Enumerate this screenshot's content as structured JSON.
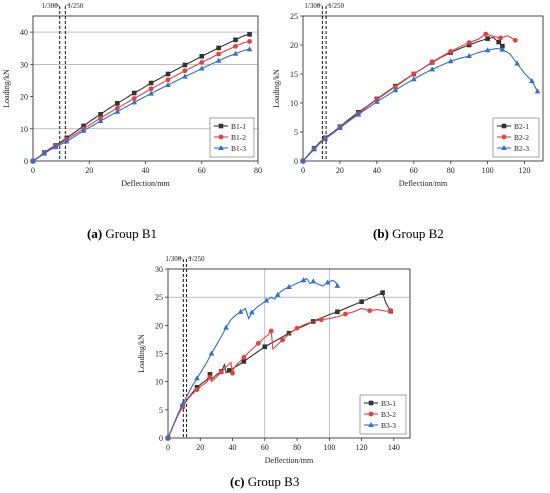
{
  "chart_data": [
    {
      "type": "line",
      "caption": "Group B1",
      "caption_letter": "(a)",
      "xlabel": "Deflection/mm",
      "ylabel": "Loading/kN",
      "xlim": [
        0,
        80
      ],
      "ylim": [
        0,
        45
      ],
      "xticks": [
        0,
        20,
        40,
        60,
        80
      ],
      "yticks": [
        0,
        10,
        20,
        30,
        40
      ],
      "grid_x": [],
      "grid_y": [
        10,
        30,
        40
      ],
      "ref_lines": [
        {
          "x": 9.5,
          "label": "1/300"
        },
        {
          "x": 11.5,
          "label": "1/250"
        }
      ],
      "legend_position": "bottom-right",
      "series": [
        {
          "name": "B1-1",
          "color": "#333333",
          "marker": "square",
          "x": [
            0,
            2,
            4,
            6,
            8,
            10,
            12,
            15,
            18,
            21,
            24,
            27,
            30,
            33,
            36,
            39,
            42,
            45,
            48,
            51,
            54,
            57,
            60,
            63,
            66,
            69,
            72,
            75,
            77
          ],
          "y": [
            0,
            1.2,
            2.6,
            3.8,
            4.8,
            5.9,
            7.2,
            9.0,
            10.9,
            12.8,
            14.5,
            16.3,
            17.9,
            19.5,
            21.1,
            22.6,
            24.2,
            25.6,
            27.0,
            28.4,
            29.8,
            31.1,
            32.5,
            33.8,
            35.1,
            36.4,
            37.6,
            38.9,
            39.3
          ]
        },
        {
          "name": "B1-2",
          "color": "#e8413c",
          "marker": "circle",
          "x": [
            0,
            2,
            4,
            6,
            8,
            10,
            12,
            15,
            18,
            21,
            24,
            27,
            30,
            33,
            36,
            39,
            42,
            45,
            48,
            51,
            54,
            57,
            60,
            63,
            66,
            69,
            72,
            75,
            77
          ],
          "y": [
            0,
            1.1,
            2.4,
            3.6,
            4.6,
            5.6,
            6.7,
            8.3,
            10.0,
            11.7,
            13.3,
            14.9,
            16.4,
            17.9,
            19.4,
            20.9,
            22.4,
            23.8,
            25.2,
            26.6,
            28.0,
            29.3,
            30.6,
            31.9,
            33.2,
            34.4,
            35.6,
            36.7,
            37.1
          ]
        },
        {
          "name": "B1-3",
          "color": "#2d6fd6",
          "marker": "triangle",
          "x": [
            0,
            2,
            4,
            6,
            8,
            10,
            12,
            15,
            18,
            21,
            24,
            27,
            30,
            33,
            36,
            39,
            42,
            45,
            48,
            51,
            54,
            57,
            60,
            63,
            66,
            69,
            72,
            75,
            77
          ],
          "y": [
            0,
            1.1,
            2.3,
            3.4,
            4.3,
            5.2,
            6.1,
            7.7,
            9.4,
            10.9,
            12.4,
            13.9,
            15.3,
            16.8,
            18.2,
            19.6,
            20.9,
            22.3,
            23.6,
            24.9,
            26.2,
            27.4,
            28.7,
            29.9,
            31.1,
            32.3,
            33.3,
            34.3,
            34.7
          ]
        }
      ]
    },
    {
      "type": "line",
      "caption": "Group B2",
      "caption_letter": "(b)",
      "xlabel": "Deflection/mm",
      "ylabel": "Loading/kN",
      "xlim": [
        0,
        130
      ],
      "ylim": [
        0,
        25
      ],
      "xticks": [
        0,
        20,
        40,
        60,
        80,
        100,
        120
      ],
      "yticks": [
        0,
        5,
        10,
        15,
        20,
        25
      ],
      "grid_x": [],
      "grid_y": [],
      "ref_lines": [
        {
          "x": 10.5,
          "label": "1/300"
        },
        {
          "x": 12.5,
          "label": "1/250"
        }
      ],
      "legend_position": "bottom-right",
      "series": [
        {
          "name": "B2-1",
          "color": "#333333",
          "marker": "square",
          "x": [
            0,
            3,
            6,
            9,
            12,
            16,
            20,
            25,
            30,
            35,
            40,
            45,
            50,
            55,
            60,
            65,
            70,
            75,
            80,
            85,
            90,
            95,
            100,
            103,
            106,
            108
          ],
          "y": [
            0,
            1.1,
            2.2,
            3.2,
            4.0,
            4.9,
            5.9,
            7.2,
            8.4,
            9.5,
            10.7,
            11.8,
            12.9,
            14.0,
            15.0,
            16.0,
            17.0,
            17.9,
            18.7,
            19.4,
            20.0,
            20.6,
            21.1,
            21.3,
            20.5,
            19.8
          ]
        },
        {
          "name": "B2-2",
          "color": "#e8413c",
          "marker": "circle",
          "x": [
            0,
            3,
            6,
            9,
            12,
            16,
            20,
            25,
            30,
            35,
            40,
            45,
            50,
            55,
            60,
            65,
            70,
            75,
            80,
            85,
            90,
            95,
            99,
            103,
            107,
            111,
            115
          ],
          "y": [
            0,
            1.0,
            2.1,
            3.1,
            3.9,
            4.8,
            5.8,
            7.0,
            8.2,
            9.4,
            10.6,
            11.7,
            12.8,
            13.9,
            15.0,
            16.0,
            17.1,
            18.0,
            18.9,
            19.7,
            20.4,
            21.0,
            21.9,
            21.5,
            21.2,
            21.6,
            20.8
          ]
        },
        {
          "name": "B2-3",
          "color": "#2d6fd6",
          "marker": "triangle",
          "x": [
            0,
            3,
            6,
            9,
            12,
            16,
            20,
            25,
            30,
            35,
            40,
            45,
            50,
            55,
            60,
            65,
            70,
            75,
            80,
            85,
            90,
            95,
            100,
            105,
            108,
            112,
            116,
            120,
            124,
            127
          ],
          "y": [
            0,
            1.0,
            2.0,
            3.0,
            3.8,
            4.7,
            5.7,
            6.9,
            8.0,
            9.1,
            10.2,
            11.2,
            12.2,
            13.2,
            14.1,
            15.0,
            15.8,
            16.5,
            17.2,
            17.7,
            18.1,
            18.7,
            19.1,
            19.4,
            19.2,
            18.5,
            16.8,
            15.1,
            13.8,
            12.0
          ]
        }
      ]
    },
    {
      "type": "line",
      "caption": "Group B3",
      "caption_letter": "(c)",
      "xlabel": "Deflection/mm",
      "ylabel": "Loading/kN",
      "xlim": [
        0,
        150
      ],
      "ylim": [
        0,
        30
      ],
      "xticks": [
        0,
        20,
        40,
        60,
        80,
        100,
        120,
        140
      ],
      "yticks": [
        0,
        5,
        10,
        15,
        20,
        25,
        30
      ],
      "grid_x": [
        60,
        100
      ],
      "grid_y": [
        25
      ],
      "ref_lines": [
        {
          "x": 9.5,
          "label": "1/300"
        },
        {
          "x": 11.5,
          "label": "1/250"
        }
      ],
      "legend_position": "bottom-right",
      "series": [
        {
          "name": "B3-1",
          "color": "#333333",
          "marker": "square",
          "x": [
            0,
            3,
            6,
            9,
            12,
            15,
            18,
            21,
            24,
            26,
            27,
            30,
            33,
            35,
            36,
            38,
            41,
            44,
            47,
            50,
            55,
            60,
            65,
            70,
            75,
            80,
            85,
            90,
            95,
            100,
            105,
            110,
            115,
            120,
            125,
            130,
            133,
            135,
            138
          ],
          "y": [
            0,
            2.0,
            4.0,
            5.6,
            6.9,
            8.0,
            9.0,
            9.7,
            10.3,
            11.3,
            10.4,
            11.2,
            11.8,
            13.0,
            11.6,
            12.0,
            12.5,
            13.0,
            13.6,
            14.2,
            15.2,
            16.2,
            17.0,
            17.8,
            18.6,
            19.4,
            20.0,
            20.7,
            21.3,
            21.9,
            22.4,
            23.0,
            23.6,
            24.2,
            24.8,
            25.4,
            25.8,
            24.0,
            22.5
          ]
        },
        {
          "name": "B3-2",
          "color": "#e8413c",
          "marker": "circle",
          "x": [
            0,
            3,
            6,
            9,
            12,
            15,
            18,
            21,
            24,
            26,
            27,
            30,
            33,
            36,
            39,
            40,
            41,
            44,
            47,
            50,
            53,
            56,
            59,
            62,
            64,
            65,
            68,
            71,
            74,
            77,
            80,
            85,
            90,
            95,
            100,
            105,
            110,
            115,
            120,
            125,
            130,
            135,
            138
          ],
          "y": [
            0,
            2.0,
            3.9,
            5.5,
            6.8,
            7.8,
            8.6,
            9.3,
            9.9,
            10.8,
            10.0,
            10.8,
            11.7,
            12.6,
            13.4,
            11.5,
            12.5,
            13.4,
            14.3,
            15.2,
            16.0,
            16.8,
            17.6,
            18.3,
            19.0,
            15.8,
            16.6,
            17.4,
            18.2,
            18.9,
            19.5,
            20.2,
            20.7,
            21.0,
            21.2,
            21.5,
            22.0,
            22.4,
            23.0,
            22.6,
            22.8,
            22.5,
            22.6
          ]
        },
        {
          "name": "B3-3",
          "color": "#2d6fd6",
          "marker": "triangle",
          "x": [
            0,
            3,
            6,
            9,
            12,
            15,
            18,
            21,
            24,
            27,
            30,
            33,
            36,
            39,
            42,
            45,
            48,
            50,
            52,
            55,
            58,
            61,
            64,
            66,
            68,
            70,
            72,
            75,
            78,
            81,
            84,
            86,
            88,
            90,
            93,
            96,
            99,
            102,
            104,
            105
          ],
          "y": [
            0,
            2.1,
            4.2,
            6.0,
            7.6,
            9.2,
            10.6,
            12.0,
            13.4,
            15.0,
            16.5,
            18.0,
            19.6,
            21.0,
            21.8,
            22.4,
            23.0,
            21.2,
            22.3,
            23.2,
            23.8,
            24.4,
            25.0,
            24.6,
            25.4,
            26.0,
            26.4,
            26.8,
            27.2,
            27.6,
            28.0,
            28.3,
            27.4,
            27.8,
            27.3,
            27.0,
            27.6,
            28.0,
            27.6,
            27.0
          ]
        }
      ]
    }
  ]
}
